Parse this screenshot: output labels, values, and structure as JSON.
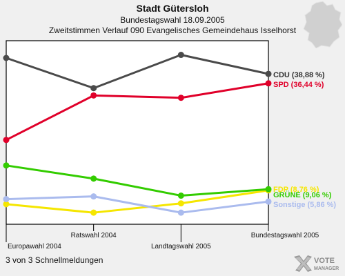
{
  "header": {
    "title": "Stadt Gütersloh",
    "subtitle": "Bundestagswahl 18.09.2005",
    "subtitle2": "Zweitstimmen Verlauf 090 Evangelisches Gemeindehaus Isselhorst"
  },
  "footer": {
    "text": "3 von 3 Schnellmeldungen"
  },
  "logo": {
    "line1": "VOTE",
    "line2": "MANAGER"
  },
  "chart_data": {
    "type": "line",
    "categories": [
      "Europawahl 2004",
      "Ratswahl 2004",
      "Landtagswahl 2005",
      "Bundestagswahl 2005"
    ],
    "ylim": [
      0,
      43
    ],
    "grid": false,
    "legend": "end-labels-right",
    "series": [
      {
        "name": "CDU",
        "label": "CDU (38,88 %)",
        "color": "#4a4a4a",
        "values": [
          43.0,
          35.2,
          43.8,
          38.88
        ]
      },
      {
        "name": "SPD",
        "label": "SPD (36,44 %)",
        "color": "#e0002a",
        "values": [
          21.8,
          33.3,
          32.7,
          36.44
        ]
      },
      {
        "name": "FDP",
        "label": "FDP (8,76 %)",
        "color": "#f5e600",
        "values": [
          5.2,
          3.0,
          5.4,
          8.76
        ]
      },
      {
        "name": "GRÜNE",
        "label": "GRÜNE (9,06 %)",
        "color": "#33cc00",
        "values": [
          15.2,
          11.8,
          7.4,
          9.06
        ]
      },
      {
        "name": "Sonstige",
        "label": "Sonstige (5,86 %)",
        "color": "#aabbee",
        "values": [
          6.5,
          7.2,
          3.0,
          5.86
        ]
      }
    ]
  }
}
